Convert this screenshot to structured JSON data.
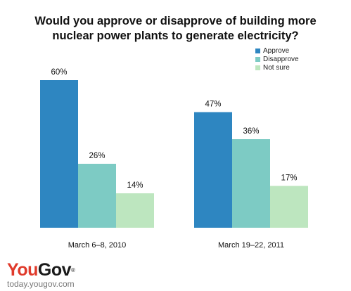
{
  "title": {
    "line1": "Would you approve or disapprove of building more",
    "line2": "nuclear power plants to generate electricity?"
  },
  "colors": {
    "approve": "#2e86c1",
    "disapprove": "#7dcbc4",
    "not_sure": "#bde6bf",
    "brand_red": "#e03a2b"
  },
  "chart_data": {
    "type": "bar",
    "title": "Would you approve or disapprove of building more nuclear power plants to generate electricity?",
    "categories": [
      "March 6–8, 2010",
      "March 19–22, 2011"
    ],
    "series": [
      {
        "name": "Approve",
        "values": [
          60,
          47
        ],
        "labels": [
          "60%",
          "47%"
        ]
      },
      {
        "name": "Disapprove",
        "values": [
          26,
          36
        ],
        "labels": [
          "26%",
          "36%"
        ]
      },
      {
        "name": "Not sure",
        "values": [
          14,
          17
        ],
        "labels": [
          "14%",
          "17%"
        ]
      }
    ],
    "unit": "%",
    "ylim": [
      0,
      70
    ],
    "grid": false,
    "legend_position": "top-right"
  },
  "brand": {
    "logo_you": "You",
    "logo_gov": "Gov",
    "logo_mark": "®",
    "site": "today.yougov.com"
  }
}
